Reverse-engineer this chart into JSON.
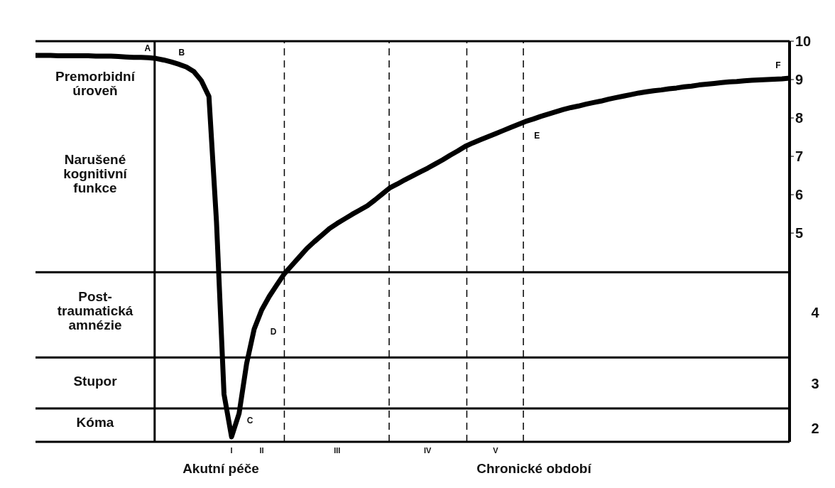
{
  "chart_data": {
    "type": "line",
    "categories": [
      null,
      null,
      null,
      null,
      null,
      null,
      null,
      null,
      null,
      null,
      null,
      null,
      null,
      null,
      null,
      null,
      null,
      null,
      null,
      null,
      null,
      null,
      null,
      null,
      null,
      null,
      "I",
      null,
      null,
      null,
      "II",
      null,
      null,
      null,
      null,
      null,
      null,
      null,
      null,
      null,
      "III",
      null,
      null,
      null,
      null,
      null,
      null,
      null,
      null,
      null,
      null,
      null,
      "IV",
      null,
      null,
      null,
      null,
      null,
      null,
      null,
      null,
      "V",
      null,
      null,
      null,
      null,
      null,
      null,
      null,
      null,
      null,
      null,
      null,
      null,
      null,
      null,
      null,
      null,
      null,
      null,
      null,
      null,
      null,
      null,
      null,
      null,
      null,
      null,
      null,
      null,
      null,
      null,
      null,
      null,
      null,
      null,
      null,
      null,
      null,
      null,
      null
    ],
    "series": [
      {
        "color": "#000000",
        "values": [
          9.63,
          9.63,
          9.63,
          9.62,
          9.62,
          9.62,
          9.62,
          9.62,
          9.61,
          9.61,
          9.61,
          9.6,
          9.59,
          9.58,
          9.58,
          9.57,
          9.55,
          9.51,
          9.46,
          9.4,
          9.33,
          9.21,
          8.97,
          8.56,
          5.3,
          0.8,
          -0.31,
          0.3,
          1.6,
          2.5,
          3.0,
          3.35,
          3.65,
          3.94,
          4.16,
          4.38,
          4.6,
          4.78,
          4.95,
          5.12,
          5.25,
          5.37,
          5.49,
          5.6,
          5.71,
          5.86,
          6.02,
          6.18,
          6.28,
          6.39,
          6.49,
          6.59,
          6.69,
          6.8,
          6.91,
          7.03,
          7.14,
          7.26,
          7.35,
          7.43,
          7.51,
          7.59,
          7.67,
          7.75,
          7.83,
          7.91,
          7.97,
          8.04,
          8.1,
          8.16,
          8.22,
          8.27,
          8.31,
          8.36,
          8.4,
          8.44,
          8.49,
          8.53,
          8.57,
          8.61,
          8.65,
          8.68,
          8.71,
          8.73,
          8.76,
          8.78,
          8.81,
          8.83,
          8.86,
          8.88,
          8.9,
          8.92,
          8.94,
          8.95,
          8.97,
          8.98,
          8.99,
          9.0,
          9.01,
          9.02,
          9.04
        ]
      }
    ],
    "ylim": [
      -0.44,
      10
    ],
    "yticks": [
      10,
      9,
      8,
      7,
      6,
      5
    ],
    "ref_lines": [
      {
        "axis": "y",
        "value": 3.98,
        "color": "#000000",
        "line_style": "solid"
      },
      {
        "axis": "y",
        "value": 1.76,
        "color": "#000000",
        "line_style": "solid"
      },
      {
        "axis": "y",
        "value": 0.43,
        "color": "#000000",
        "line_style": "solid"
      }
    ],
    "annotations": [
      {
        "text": "A",
        "y": 9.56
      },
      {
        "text": "B",
        "y": 9.4
      },
      {
        "text": "E",
        "y": 7.91
      },
      {
        "text": "F",
        "y": 9.04
      },
      "C",
      "D",
      "Premorbidní\núroveň",
      "Narušené\nkognitivní\nfunkce",
      "Post-\ntraumatická\namnézie",
      "Stupor",
      "Kóma",
      "4",
      "3",
      "2",
      "Akutní péče",
      "Chronické období"
    ]
  }
}
